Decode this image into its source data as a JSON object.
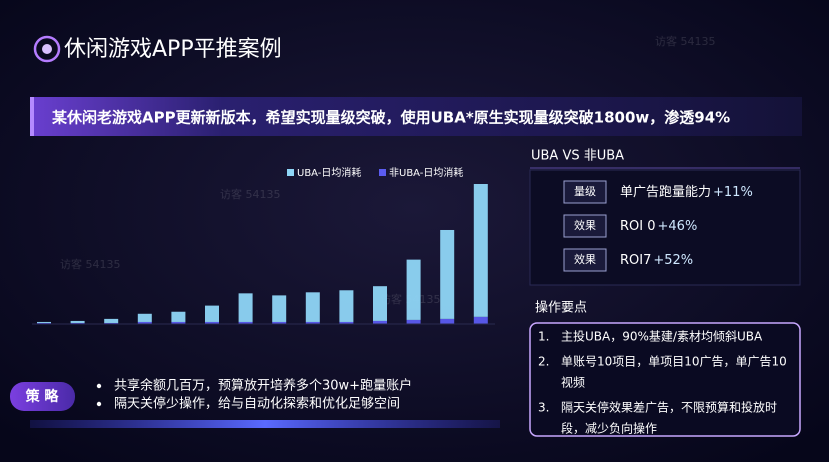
{
  "header": {
    "title": "休闲游戏APP平推案例"
  },
  "banner": "某休闲老游戏APP更新新版本，希望实现量级突破，使用UBA*原生实现量级突破1800w，渗透94%",
  "chart_data": {
    "type": "bar",
    "stacked": true,
    "categories": [
      null,
      null,
      null,
      null,
      null,
      null,
      null,
      null,
      null,
      null,
      null,
      null,
      null,
      null
    ],
    "series": [
      {
        "name": "UBA-日均消耗",
        "color": "#8fd6f7",
        "values": [
          1,
          2,
          4,
          8,
          10,
          16,
          28,
          26,
          29,
          31,
          34,
          59,
          87,
          130
        ]
      },
      {
        "name": "非UBA-日均消耗",
        "color": "#5b5cf0",
        "values": [
          1,
          1,
          1,
          2,
          2,
          2,
          2,
          2,
          2,
          2,
          3,
          4,
          5,
          7
        ]
      }
    ],
    "legend": "top"
  },
  "comparison": {
    "title": "UBA VS 非UBA",
    "rows": [
      {
        "tag": "量级",
        "label": "单广告跑量能力",
        "change": "+11%"
      },
      {
        "tag": "效果",
        "label": "ROI 0",
        "change": "+46%"
      },
      {
        "tag": "效果",
        "label": "ROI7",
        "change": "+52%"
      }
    ]
  },
  "operations": {
    "title": "操作要点",
    "items": [
      {
        "number": "1.",
        "lines": [
          "主投UBA，90%基建/素材均倾斜UBA"
        ]
      },
      {
        "number": "2.",
        "lines": [
          "单账号10项目，单项目10广告，单广告10",
          "视频"
        ]
      },
      {
        "number": "3.",
        "lines": [
          "隔天关停效果差广告，不限预算和投放时",
          "段，减少负向操作"
        ]
      }
    ]
  },
  "strategy": {
    "label": "策 略",
    "bullets": [
      "共享余额几百万，预算放开培养多个30w+跑量账户",
      "隔天关停少操作，给与自动化探索和优化足够空间"
    ]
  },
  "watermark": "访客 54135"
}
